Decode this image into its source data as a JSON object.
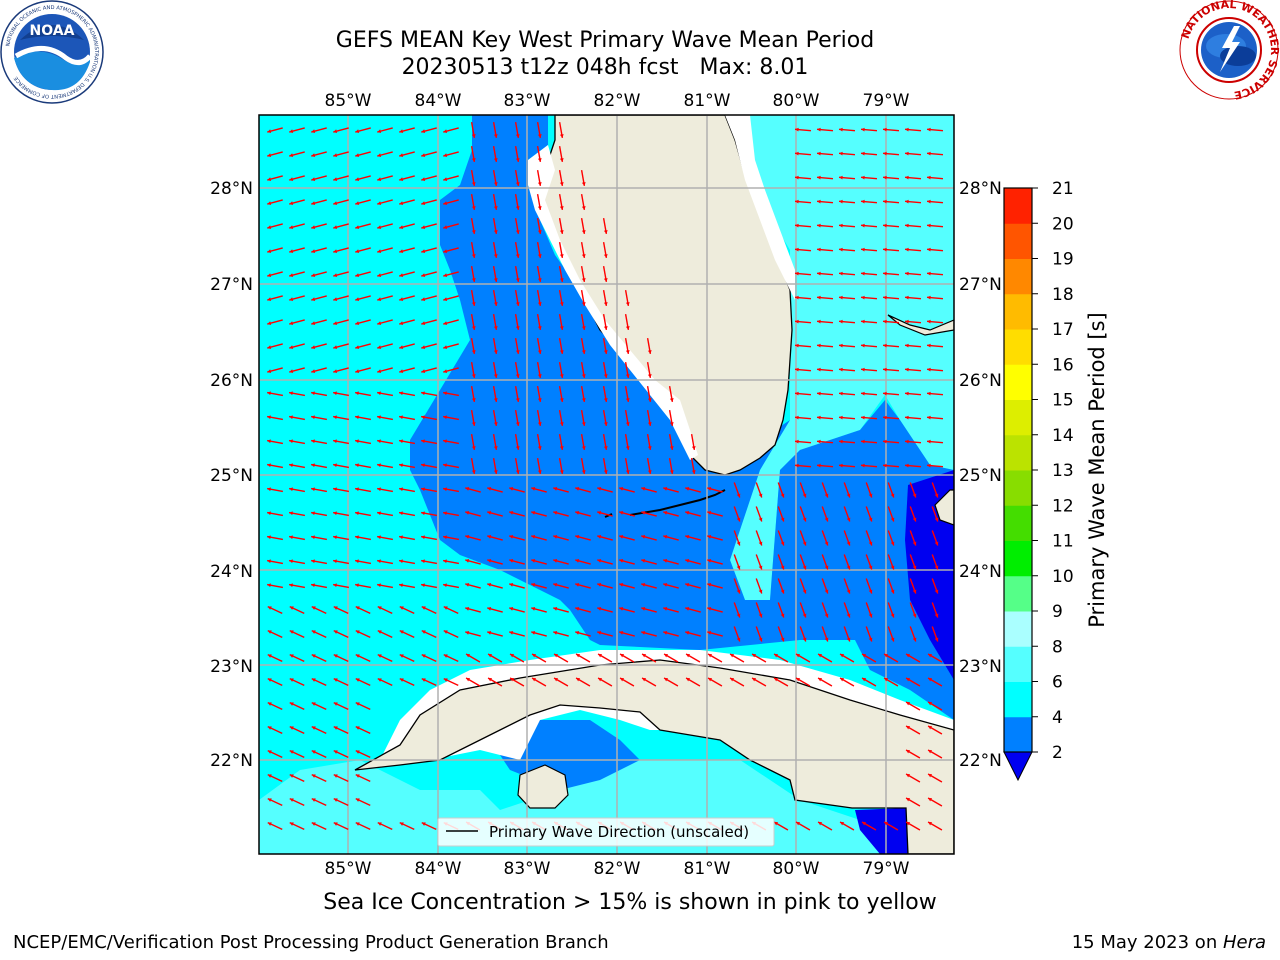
{
  "title": {
    "line1": "GEFS MEAN Key West Primary Wave Mean Period",
    "line2_run": "20230513 t12z 048h fcst",
    "line2_max": "Max: 8.01"
  },
  "logos": {
    "left": {
      "icon": "noaa-logo",
      "text": "NOAA",
      "ring_top": "NATIONAL OCEANIC AND ATMOSPHERIC ADMINISTRATION",
      "ring_bottom": "U.S. DEPARTMENT OF COMMERCE"
    },
    "right": {
      "icon": "nws-logo",
      "ring_text": "NATIONAL WEATHER SERVICE"
    }
  },
  "map": {
    "lon_ticks": [
      "85°W",
      "84°W",
      "83°W",
      "82°W",
      "81°W",
      "80°W",
      "79°W"
    ],
    "lat_ticks": [
      "28°N",
      "27°N",
      "26°N",
      "25°N",
      "24°N",
      "23°N",
      "22°N"
    ],
    "legend_label": "Primary Wave Direction (unscaled)",
    "colors": {
      "land": "#eeecdc",
      "cyan_4_6": "#00ffff",
      "lightcyan_6_8": "#55ffff",
      "blue_2_4": "#0080ff",
      "darkblue_lt2": "#0000f0",
      "arrows": "#ff0000",
      "grid": "#b0b0b0"
    }
  },
  "colorbar": {
    "label": "Primary Wave Mean Period [s]",
    "ticks": [
      "2",
      "4",
      "6",
      "8",
      "9",
      "10",
      "11",
      "12",
      "13",
      "14",
      "15",
      "16",
      "17",
      "18",
      "19",
      "20",
      "21"
    ],
    "colors": [
      "#0080ff",
      "#00ffff",
      "#55ffff",
      "#aaffff",
      "#55ff88",
      "#00ee00",
      "#44dd00",
      "#88dd00",
      "#bbe300",
      "#ddee00",
      "#ffff00",
      "#ffdd00",
      "#ffbb00",
      "#ff8800",
      "#ff5500",
      "#ff2200"
    ],
    "under_color": "#0000f0"
  },
  "bottom_note": "Sea Ice Concentration > 15% is shown in pink to yellow",
  "footer": {
    "org": "NCEP/EMC/Verification Post Processing Product Generation Branch",
    "date": "15 May 2023 on ",
    "host": "Hera"
  }
}
